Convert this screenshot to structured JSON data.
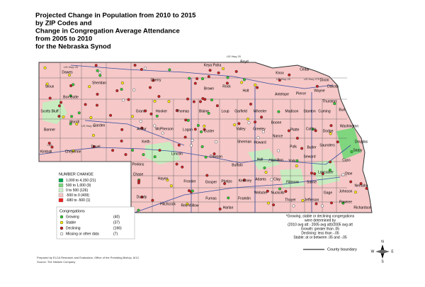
{
  "title": [
    "Projected Change in Population from 2010 to 2015",
    "by ZIP Codes and",
    "Change in Congregation Average Attendance",
    "from 2005 to 2010",
    "for the Nebraska Synod"
  ],
  "counties": [
    "Dawes",
    "Sioux",
    "Sheridan",
    "Box Butte",
    "Scotts Bluff",
    "Morrill",
    "Garden",
    "Banner",
    "Kimball",
    "Cheyenne",
    "Deuel",
    "Keya Paha",
    "Boyd",
    "Cherry",
    "Brown",
    "Rock",
    "Holt",
    "Knox",
    "Cedar",
    "Dixon",
    "Antelope",
    "Pierce",
    "Wayne",
    "Thurston",
    "Dakota",
    "Grant",
    "Hooker",
    "Thomas",
    "Blaine",
    "Loup",
    "Garfield",
    "Wheeler",
    "Madison",
    "Stanton",
    "Cuming",
    "Burt",
    "Arthur",
    "McPherson",
    "Logan",
    "Custer",
    "Valley",
    "Greeley",
    "Boone",
    "Platte",
    "Colfax",
    "Dodge",
    "Washington",
    "Sherman",
    "Howard",
    "Nance",
    "Keith",
    "Lincoln",
    "Dawson",
    "Buffalo",
    "Hall",
    "Polk",
    "Butler",
    "Saunders",
    "Douglas",
    "Sarpy",
    "Cass",
    "Hamilton",
    "York",
    "Seward",
    "Lancaster",
    "Otoe",
    "Perkins",
    "Chase",
    "Hayes",
    "Frontier",
    "Gosper",
    "Phelps",
    "Kearney",
    "Adams",
    "Clay",
    "Fillmore",
    "Saline",
    "Dundy",
    "Hitchcock",
    "Red Willow",
    "Furnas",
    "Harlan",
    "Franklin",
    "Webster",
    "Nuckolls",
    "Thayer",
    "Jefferson",
    "Gage",
    "Johnson",
    "Nemaha",
    "Pawnee",
    "Richardson"
  ],
  "roads": [
    "US Hwy 20",
    "US Hwy 20",
    "US Hwy 275",
    "US Hwy 30",
    "I-80",
    "US Hwy 26"
  ],
  "legend_population": {
    "title": "NUMBER CHANGE",
    "items": [
      "1,000 to 4,150  (21)",
      "500 to 1,000  (9)",
      "0 to 500  (126)",
      "-500 to 0  (409)",
      "-680 to -500  (1)"
    ]
  },
  "legend_congregations": {
    "title": "Congregations",
    "items": [
      "Growing",
      "Stable",
      "Declining",
      "Missing or other data"
    ],
    "counts": [
      "(40)",
      "(37)",
      "(166)",
      "(7)"
    ]
  },
  "note": [
    "*Growing, stable or declining congregations",
    "were determined by",
    "(2010 avg att - 2005 avg att)/2005 avg att",
    "Growth:  greater than .05",
    "Declining:  less than -.05",
    "Stable:  at or between .05 and -.05"
  ],
  "boundary_legend": "County boundary",
  "compass": [
    "N",
    "E",
    "S",
    "W"
  ],
  "credits": [
    "Prepared by ELCA Research and Evaluation, Office of the Presiding Bishop, 8/12.",
    "Source: The Nielsen Company"
  ]
}
